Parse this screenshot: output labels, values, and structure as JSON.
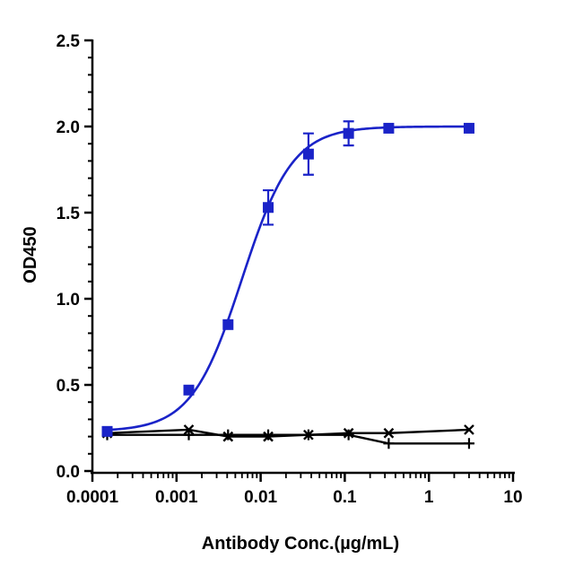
{
  "chart_data": {
    "type": "scatter",
    "title": "",
    "xlabel": "Antibody Conc.(µg/mL)",
    "ylabel": "OD450",
    "xscale": "log",
    "xlim": [
      0.0001,
      10
    ],
    "ylim": [
      0,
      2.5
    ],
    "x_ticks": [
      "0.0001",
      "0.001",
      "0.01",
      "0.1",
      "1",
      "10"
    ],
    "y_ticks": [
      "0.0",
      "0.5",
      "1.0",
      "1.5",
      "2.0",
      "2.5"
    ],
    "grid": false,
    "legend": "none",
    "series": [
      {
        "marker": "square",
        "color": "#1a23c8",
        "fit": "4PL",
        "fit_params": {
          "bottom": 0.23,
          "top": 2.0,
          "ec50": 0.006,
          "hill": 1.45
        },
        "x": [
          0.00015,
          0.0014,
          0.0041,
          0.0123,
          0.037,
          0.111,
          0.333,
          3.0
        ],
        "y": [
          0.23,
          0.47,
          0.85,
          1.53,
          1.84,
          1.96,
          1.99,
          1.99
        ],
        "error": [
          0.01,
          0.02,
          0.02,
          0.1,
          0.12,
          0.07,
          0.03,
          0.01
        ]
      },
      {
        "marker": "x",
        "color": "#000000",
        "x": [
          0.00015,
          0.0014,
          0.0041,
          0.0123,
          0.037,
          0.111,
          0.333,
          3.0
        ],
        "y": [
          0.22,
          0.24,
          0.2,
          0.2,
          0.21,
          0.22,
          0.22,
          0.24
        ]
      },
      {
        "marker": "plus",
        "color": "#000000",
        "x": [
          0.00015,
          0.0014,
          0.0041,
          0.0123,
          0.037,
          0.111,
          0.333,
          3.0
        ],
        "y": [
          0.21,
          0.21,
          0.21,
          0.21,
          0.21,
          0.21,
          0.16,
          0.16
        ]
      }
    ]
  }
}
